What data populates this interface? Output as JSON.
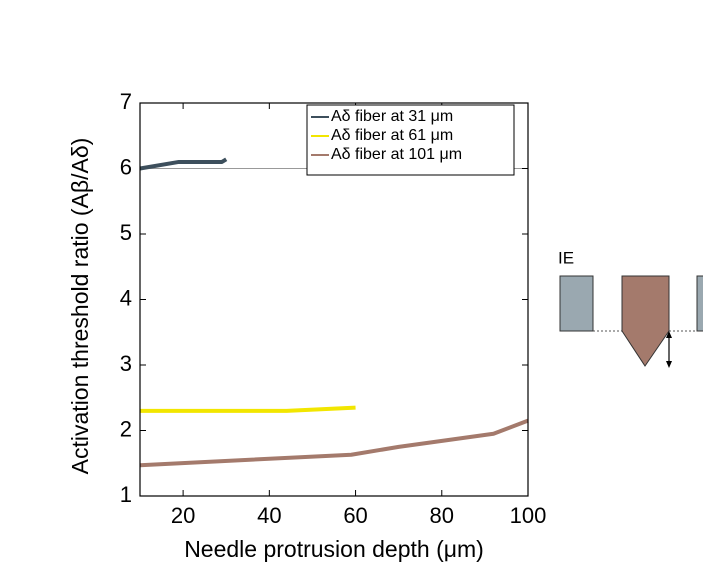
{
  "chart_data": {
    "type": "line",
    "xlabel": "Needle protrusion depth (μm)",
    "ylabel": "Activation threshold ratio (Aβ/Aδ)",
    "xlim": [
      10,
      100
    ],
    "xticks": [
      20,
      40,
      60,
      80,
      100
    ],
    "ylim": [
      1,
      7
    ],
    "yticks": [
      1,
      2,
      3,
      4,
      5,
      6,
      7
    ],
    "reference_line": 6,
    "legend": "upper right",
    "series": [
      {
        "name": "Aδ fiber at 31 μm",
        "color": "#3d4f5c",
        "x": [
          10,
          19,
          29,
          30
        ],
        "values": [
          6.0,
          6.1,
          6.1,
          6.14
        ]
      },
      {
        "name": "Aδ fiber at 61 μm",
        "color": "#f2e600",
        "x": [
          10,
          44,
          60
        ],
        "values": [
          2.3,
          2.3,
          2.35
        ]
      },
      {
        "name": "Aδ fiber at 101 μm",
        "color": "#a47a6c",
        "x": [
          10,
          59,
          70,
          92,
          100
        ],
        "values": [
          1.47,
          1.63,
          1.75,
          1.95,
          2.15
        ]
      }
    ],
    "annotations": [
      "IE"
    ]
  }
}
